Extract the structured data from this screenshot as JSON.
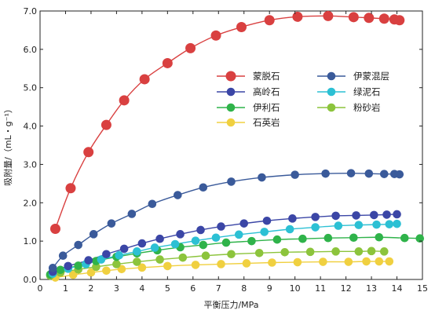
{
  "chart_data": {
    "type": "line",
    "xlabel": "平衡压力/MPa",
    "ylabel": "吸附量/（mL・g⁻¹）",
    "xlim": [
      0,
      15
    ],
    "ylim": [
      0,
      7
    ],
    "x_ticks": [
      0,
      1,
      2,
      3,
      4,
      5,
      6,
      7,
      8,
      9,
      10,
      11,
      12,
      13,
      14,
      15
    ],
    "y_ticks": [
      0,
      1,
      2,
      3,
      4,
      5,
      6,
      7
    ],
    "x_tick_labels": [
      "0",
      "1",
      "2",
      "3",
      "4",
      "5",
      "6",
      "7",
      "8",
      "9",
      "10",
      "11",
      "12",
      "13",
      "14",
      "15"
    ],
    "y_tick_labels": [
      "0.0",
      "1.0",
      "2.0",
      "3.0",
      "4.0",
      "5.0",
      "6.0",
      "7.0"
    ],
    "grid": false,
    "legend": "center-right",
    "series": [
      {
        "name": "蒙脱石",
        "color": "#d94040",
        "line_color": "#d94040",
        "marker_size": "large",
        "x": [
          0.6,
          1.2,
          1.9,
          2.6,
          3.3,
          4.1,
          5.0,
          5.9,
          6.9,
          7.9,
          9.0,
          10.1,
          11.3,
          12.3,
          12.9,
          13.5,
          13.9,
          14.1
        ],
        "y": [
          1.32,
          2.38,
          3.32,
          4.03,
          4.67,
          5.22,
          5.64,
          6.03,
          6.36,
          6.58,
          6.76,
          6.85,
          6.87,
          6.84,
          6.82,
          6.8,
          6.78,
          6.76
        ]
      },
      {
        "name": "伊蒙混层",
        "color": "#3a5a9a",
        "line_color": "#3a5a9a",
        "marker_size": "medium",
        "x": [
          0.5,
          0.9,
          1.5,
          2.1,
          2.8,
          3.6,
          4.4,
          5.4,
          6.4,
          7.5,
          8.7,
          10.0,
          11.2,
          12.2,
          12.9,
          13.5,
          13.9,
          14.1
        ],
        "y": [
          0.3,
          0.62,
          0.9,
          1.18,
          1.46,
          1.71,
          1.97,
          2.2,
          2.4,
          2.55,
          2.66,
          2.73,
          2.76,
          2.77,
          2.76,
          2.75,
          2.75,
          2.74
        ]
      },
      {
        "name": "高岭石",
        "color": "#3b46a6",
        "line_color": "#3b46a6",
        "marker_size": "medium",
        "x": [
          0.5,
          1.1,
          1.9,
          2.6,
          3.3,
          4.0,
          4.7,
          5.5,
          6.3,
          7.1,
          8.0,
          8.9,
          9.9,
          10.8,
          11.6,
          12.4,
          13.1,
          13.6,
          14.0
        ],
        "y": [
          0.2,
          0.35,
          0.5,
          0.66,
          0.8,
          0.94,
          1.06,
          1.18,
          1.29,
          1.38,
          1.46,
          1.53,
          1.59,
          1.63,
          1.66,
          1.67,
          1.68,
          1.69,
          1.7
        ]
      },
      {
        "name": "绿泥石",
        "color": "#2cc0d4",
        "line_color": "#2cc0d4",
        "marker_size": "medium",
        "x": [
          0.5,
          1.1,
          1.8,
          2.4,
          3.1,
          3.8,
          4.5,
          5.3,
          6.1,
          6.9,
          7.8,
          8.8,
          9.8,
          10.8,
          11.7,
          12.5,
          13.2,
          13.7,
          14.0
        ],
        "y": [
          0.15,
          0.28,
          0.4,
          0.52,
          0.63,
          0.73,
          0.83,
          0.92,
          1.01,
          1.09,
          1.17,
          1.24,
          1.31,
          1.36,
          1.4,
          1.42,
          1.43,
          1.44,
          1.45
        ]
      },
      {
        "name": "伊利石",
        "color": "#2fb34a",
        "line_color": "#2fb34a",
        "marker_size": "medium",
        "x": [
          0.4,
          0.8,
          1.5,
          2.2,
          3.0,
          3.8,
          4.6,
          5.5,
          6.4,
          7.3,
          8.3,
          9.3,
          10.3,
          11.3,
          12.3,
          13.3,
          14.3,
          14.9
        ],
        "y": [
          0.13,
          0.25,
          0.36,
          0.48,
          0.59,
          0.68,
          0.76,
          0.84,
          0.9,
          0.96,
          1.0,
          1.04,
          1.06,
          1.08,
          1.09,
          1.1,
          1.08,
          1.07
        ]
      },
      {
        "name": "粉砂岩",
        "color": "#8cc43c",
        "line_color": "#8cc43c",
        "marker_size": "medium",
        "x": [
          0.4,
          0.8,
          1.5,
          2.2,
          3.0,
          3.8,
          4.7,
          5.6,
          6.5,
          7.5,
          8.6,
          9.6,
          10.6,
          11.6,
          12.5,
          13.0,
          13.5
        ],
        "y": [
          0.1,
          0.18,
          0.26,
          0.33,
          0.4,
          0.46,
          0.52,
          0.57,
          0.62,
          0.66,
          0.69,
          0.71,
          0.72,
          0.73,
          0.73,
          0.74,
          0.73
        ]
      },
      {
        "name": "石英岩",
        "color": "#f0d040",
        "line_color": "#f0d040",
        "marker_size": "medium",
        "x": [
          0.6,
          1.3,
          2.0,
          2.6,
          3.2,
          4.0,
          5.0,
          6.1,
          7.1,
          8.1,
          9.1,
          10.1,
          11.1,
          12.1,
          12.8,
          13.3,
          13.7
        ],
        "y": [
          0.05,
          0.12,
          0.18,
          0.23,
          0.27,
          0.31,
          0.35,
          0.38,
          0.4,
          0.42,
          0.44,
          0.45,
          0.46,
          0.46,
          0.47,
          0.47,
          0.47
        ]
      }
    ],
    "legend_order": [
      "蒙脱石",
      "伊蒙混层",
      "高岭石",
      "绿泥石",
      "伊利石",
      "粉砂岩",
      "石英岩"
    ]
  }
}
